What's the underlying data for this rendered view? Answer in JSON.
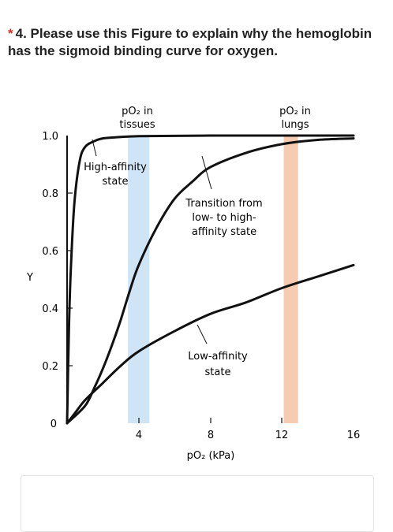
{
  "question": {
    "required_marker": "*",
    "text": "4. Please use this Figure to explain why the hemoglobin has the sigmoid binding curve for oxygen."
  },
  "figure": {
    "colors": {
      "tissues_band": "#cfe4f5",
      "lungs_band": "#f7cbb2",
      "curve": "#111111"
    }
  },
  "chart_data": {
    "type": "line",
    "title": "",
    "xlabel": "pO₂ (kPa)",
    "ylabel": "Y",
    "xlim": [
      0,
      16
    ],
    "ylim": [
      0,
      1.0
    ],
    "x_ticks": [
      "4",
      "8",
      "12",
      "16"
    ],
    "y_ticks": [
      "0",
      "0.2",
      "0.4",
      "0.6",
      "0.8",
      "1.0"
    ],
    "grid": false,
    "bands": [
      {
        "label_line1": "pO₂ in",
        "label_line2": "tissues",
        "x_range": [
          3.4,
          4.6
        ]
      },
      {
        "label_line1": "pO₂ in",
        "label_line2": "lungs",
        "x_range": [
          12.1,
          12.9
        ]
      }
    ],
    "series": [
      {
        "name": "High-affinity state",
        "x": [
          0,
          0.1,
          0.2,
          0.4,
          0.7,
          1.0,
          1.5,
          2.0,
          3.0,
          4.0,
          6.0,
          8.0,
          10.0,
          12.0,
          14.0,
          16.0
        ],
        "y": [
          0.0,
          0.32,
          0.52,
          0.76,
          0.91,
          0.96,
          0.98,
          0.99,
          0.995,
          0.998,
          0.999,
          1.0,
          1.0,
          1.0,
          1.0,
          1.0
        ]
      },
      {
        "name": "Transition from low- to high-affinity state",
        "x": [
          0,
          1.0,
          1.5,
          2.0,
          2.5,
          3.0,
          3.5,
          4.0,
          5.0,
          6.0,
          7.0,
          8.0,
          10.0,
          12.0,
          14.0,
          16.0
        ],
        "y": [
          0.0,
          0.06,
          0.12,
          0.19,
          0.27,
          0.36,
          0.46,
          0.55,
          0.68,
          0.78,
          0.84,
          0.89,
          0.94,
          0.97,
          0.985,
          0.99
        ]
      },
      {
        "name": "Low-affinity state",
        "x": [
          0,
          0.5,
          1.0,
          2.0,
          3.0,
          4.0,
          6.0,
          8.0,
          10.0,
          12.0,
          14.0,
          16.0
        ],
        "y": [
          0.0,
          0.04,
          0.08,
          0.14,
          0.2,
          0.25,
          0.32,
          0.38,
          0.42,
          0.47,
          0.51,
          0.55
        ]
      }
    ],
    "annotations": [
      {
        "lines": [
          "High-affinity",
          "state"
        ]
      },
      {
        "lines": [
          "Transition from",
          "low- to high-",
          "affinity state"
        ]
      },
      {
        "lines": [
          "Low-affinity",
          "state"
        ]
      }
    ]
  }
}
